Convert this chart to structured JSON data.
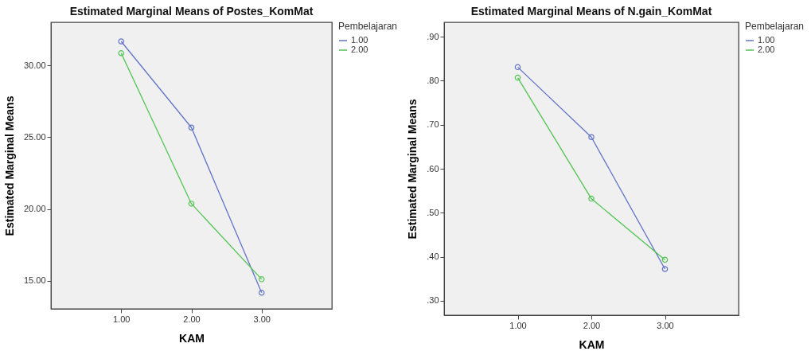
{
  "chart_data": [
    {
      "type": "line",
      "title": "Estimated Marginal Means of Postes_KomMat",
      "xlabel": "KAM",
      "ylabel": "Estimated Marginal Means",
      "legend_title": "Pembelajaran",
      "categories": [
        "1.00",
        "2.00",
        "3.00"
      ],
      "series": [
        {
          "name": "1.00",
          "color": "#6274c6",
          "values": [
            31.67,
            25.67,
            14.17
          ]
        },
        {
          "name": "2.00",
          "color": "#52c452",
          "values": [
            30.85,
            20.37,
            15.11
          ]
        }
      ],
      "ylim": [
        13.05,
        33.0
      ],
      "yticks": [
        {
          "value": 15,
          "label": "15.00"
        },
        {
          "value": 20,
          "label": "20.00"
        },
        {
          "value": 25,
          "label": "25.00"
        },
        {
          "value": 30,
          "label": "30.00"
        }
      ],
      "grid": false,
      "legend": "top right",
      "marker": "circle",
      "line_style": "solid"
    },
    {
      "type": "line",
      "title": "Estimated Marginal Means of N.gain_KomMat",
      "xlabel": "KAM",
      "ylabel": "Estimated Marginal Means",
      "legend_title": "Pembelajaran",
      "categories": [
        "1.00",
        "2.00",
        "3.00"
      ],
      "series": [
        {
          "name": "1.00",
          "color": "#6274c6",
          "values": [
            0.831,
            0.672,
            0.372
          ]
        },
        {
          "name": "2.00",
          "color": "#52c452",
          "values": [
            0.807,
            0.532,
            0.393
          ]
        }
      ],
      "ylim": [
        0.267,
        0.933
      ],
      "yticks": [
        {
          "value": 0.3,
          "label": ".30"
        },
        {
          "value": 0.4,
          "label": ".40"
        },
        {
          "value": 0.5,
          "label": ".50"
        },
        {
          "value": 0.6,
          "label": ".60"
        },
        {
          "value": 0.7,
          "label": ".70"
        },
        {
          "value": 0.8,
          "label": ".80"
        },
        {
          "value": 0.9,
          "label": ".90"
        }
      ],
      "grid": false,
      "legend": "top right",
      "marker": "circle",
      "line_style": "solid"
    }
  ]
}
